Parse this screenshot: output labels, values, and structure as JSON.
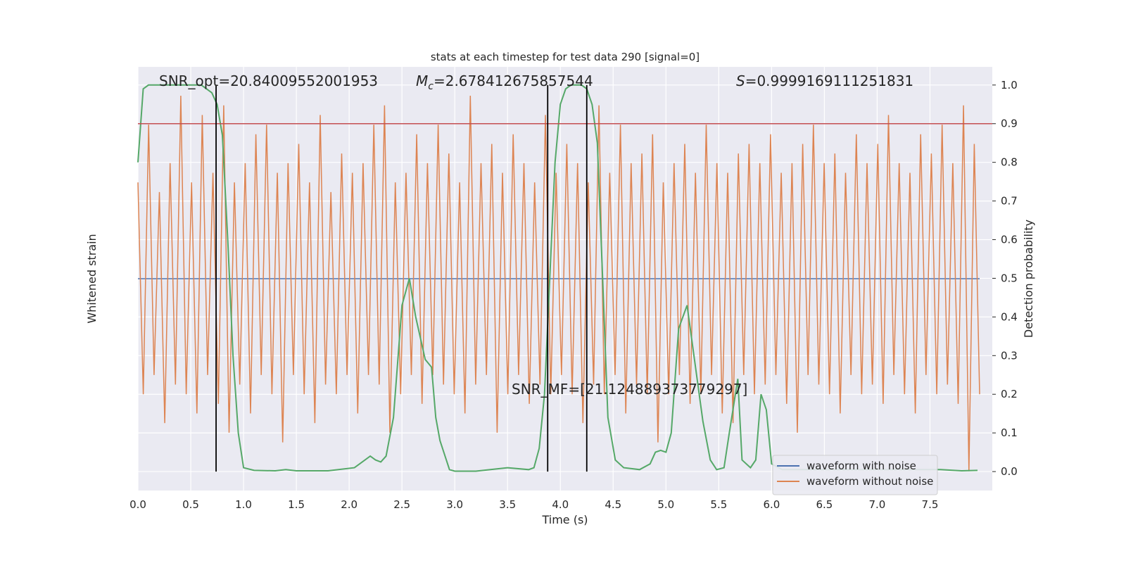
{
  "chart_data": {
    "type": "line",
    "title": "stats at each timestep for test data 290 [signal=0]",
    "x_label": "Time (s)",
    "y_label": "Whitened strain",
    "y2_label": "Detection probability",
    "xlim": [
      0,
      8.09
    ],
    "xticks": [
      {
        "value": 0,
        "label": "0.0"
      },
      0.5,
      {
        "value": 1,
        "label": "1.0"
      },
      1.5,
      {
        "value": 2,
        "label": "2.0"
      },
      2.5,
      {
        "value": 3,
        "label": "3.0"
      },
      3.5,
      {
        "value": 4,
        "label": "4.0"
      },
      4.5,
      {
        "value": 5,
        "label": "5.0"
      },
      5.5,
      {
        "value": 6,
        "label": "6.0"
      },
      6.5,
      {
        "value": 7,
        "label": "7.0"
      },
      7.5
    ],
    "ylim": [
      -1.1,
      1.1
    ],
    "y2lim": [
      -0.049,
      1.047
    ],
    "y2ticks": [
      {
        "value": 0,
        "label": "0.0"
      },
      0.1,
      0.2,
      0.3,
      0.4,
      0.5,
      0.6,
      0.7,
      0.8,
      0.9,
      {
        "value": 1,
        "label": "1.0"
      }
    ],
    "grid": true,
    "legend": "lower right",
    "strain_x_range": [
      0,
      7.97
    ],
    "series": [
      {
        "name": "waveform with noise",
        "color": "#4c72b0",
        "values": [
          0,
          0,
          0,
          0,
          0,
          0,
          0,
          0,
          0,
          0,
          0,
          0,
          0,
          0,
          0,
          0,
          0,
          0,
          0,
          0,
          0,
          0,
          0,
          0,
          0,
          0,
          0,
          0,
          0,
          0,
          0,
          0,
          0,
          0,
          0,
          0,
          0,
          0,
          0,
          0,
          0,
          0,
          0,
          0,
          0,
          0,
          0,
          0,
          0,
          0,
          0,
          0,
          0,
          0,
          0,
          0,
          0,
          0,
          0,
          0,
          0,
          0,
          0,
          0,
          0,
          0,
          0,
          0,
          0,
          0,
          0,
          0,
          0,
          0,
          0,
          0,
          0,
          0,
          0,
          0,
          0,
          0,
          0,
          0,
          0,
          0,
          0,
          0,
          0,
          0,
          0,
          0,
          0,
          0,
          0,
          0,
          0,
          0,
          0,
          0,
          0,
          0,
          0,
          0,
          0,
          0,
          0,
          0,
          0,
          0,
          0,
          0,
          0,
          0,
          0,
          0,
          0,
          0,
          0,
          0,
          0,
          0,
          0,
          0,
          0,
          0,
          0,
          0,
          0,
          0,
          0,
          0,
          0,
          0,
          0,
          0,
          0,
          0,
          0,
          0,
          0,
          0,
          0,
          0,
          0,
          0,
          0,
          0,
          0,
          0,
          0,
          0,
          0,
          0,
          0,
          0,
          0,
          0,
          0,
          0
        ]
      },
      {
        "name": "waveform without noise",
        "color": "#dd8452",
        "values": [
          0.5,
          -0.6,
          0.8,
          -0.5,
          0.45,
          -0.75,
          0.6,
          -0.55,
          0.95,
          -0.6,
          0.5,
          -0.7,
          0.85,
          -0.5,
          0.55,
          -0.65,
          0.9,
          -0.8,
          0.5,
          -0.55,
          0.6,
          -0.7,
          0.75,
          -0.5,
          0.8,
          -0.6,
          0.55,
          -0.85,
          0.6,
          -0.5,
          0.7,
          -0.6,
          0.5,
          -0.75,
          0.85,
          -0.55,
          0.45,
          -0.6,
          0.65,
          -0.5,
          0.55,
          -0.7,
          0.6,
          -0.5,
          0.8,
          -0.55,
          0.9,
          -0.8,
          0.5,
          -0.6,
          0.55,
          -0.5,
          0.75,
          -0.65,
          0.6,
          -0.5,
          0.8,
          -0.55,
          0.65,
          -0.6,
          0.5,
          -0.7,
          0.95,
          -0.55,
          0.6,
          -0.5,
          0.7,
          -0.8,
          0.55,
          -0.6,
          0.75,
          -0.5,
          0.6,
          -0.65,
          0.5,
          -0.55,
          0.85,
          -0.6,
          0.55,
          -0.5,
          0.7,
          -0.6,
          0.6,
          -0.75,
          0.5,
          -0.55,
          0.9,
          -0.6,
          0.55,
          -0.5,
          0.8,
          -0.7,
          0.6,
          -0.55,
          0.65,
          -0.6,
          0.75,
          -0.85,
          0.5,
          -0.6,
          0.6,
          -0.5,
          0.7,
          -0.65,
          0.55,
          -0.6,
          0.8,
          -0.5,
          0.6,
          -0.7,
          0.55,
          -0.75,
          0.65,
          -0.5,
          0.7,
          -0.6,
          0.6,
          -0.55,
          0.75,
          -0.5,
          0.55,
          -0.65,
          0.6,
          -0.8,
          0.7,
          -0.5,
          0.8,
          -0.55,
          0.6,
          -0.6,
          0.65,
          -0.7,
          0.55,
          -0.5,
          0.75,
          -0.6,
          0.6,
          -0.55,
          0.7,
          -0.65,
          0.85,
          -0.5,
          0.6,
          -0.6,
          0.55,
          -0.7,
          0.75,
          -0.5,
          0.65,
          -0.6,
          0.8,
          -0.55,
          0.6,
          -0.65,
          0.9,
          -1.0,
          0.7,
          -0.6
        ]
      },
      {
        "name": "detection probability",
        "color": "#55a868",
        "axis": "y2",
        "x": [
          0,
          0.05,
          0.1,
          0.6,
          0.7,
          0.75,
          0.8,
          0.85,
          0.9,
          0.95,
          1.0,
          1.1,
          1.3,
          1.4,
          1.5,
          1.8,
          2.05,
          2.2,
          2.25,
          2.3,
          2.35,
          2.42,
          2.5,
          2.57,
          2.63,
          2.72,
          2.78,
          2.82,
          2.86,
          2.95,
          3.0,
          3.2,
          3.5,
          3.7,
          3.75,
          3.8,
          3.85,
          3.9,
          3.95,
          4.0,
          4.05,
          4.1,
          4.2,
          4.25,
          4.3,
          4.35,
          4.4,
          4.45,
          4.52,
          4.6,
          4.75,
          4.85,
          4.9,
          4.95,
          5.0,
          5.05,
          5.12,
          5.2,
          5.25,
          5.35,
          5.42,
          5.48,
          5.55,
          5.6,
          5.68,
          5.72,
          5.8,
          5.85,
          5.9,
          5.95,
          6.0,
          6.1,
          7.6,
          7.8,
          7.95
        ],
        "values": [
          0.8,
          0.99,
          1,
          1,
          0.98,
          0.95,
          0.87,
          0.6,
          0.3,
          0.1,
          0.01,
          0.003,
          0.002,
          0.005,
          0.002,
          0.002,
          0.01,
          0.04,
          0.03,
          0.025,
          0.04,
          0.14,
          0.43,
          0.5,
          0.4,
          0.29,
          0.27,
          0.14,
          0.08,
          0.005,
          0.001,
          0.001,
          0.01,
          0.005,
          0.01,
          0.06,
          0.2,
          0.5,
          0.8,
          0.95,
          0.99,
          1,
          1,
          0.99,
          0.95,
          0.85,
          0.5,
          0.14,
          0.03,
          0.01,
          0.005,
          0.02,
          0.05,
          0.055,
          0.05,
          0.1,
          0.37,
          0.43,
          0.33,
          0.13,
          0.03,
          0.005,
          0.01,
          0.1,
          0.24,
          0.03,
          0.01,
          0.03,
          0.2,
          0.16,
          0.02,
          0.005,
          0.005,
          0.002,
          0.003
        ]
      }
    ],
    "threshold": {
      "value": 0.9,
      "color": "#c44e52"
    },
    "vlines": [
      0.74,
      3.88,
      4.25
    ],
    "annotations": {
      "snr_opt": "SNR_opt=20.84009552001953",
      "mc_symbol": "M",
      "mc_subscript": "c",
      "mc_text": "=2.678412675857544",
      "s_symbol": "S",
      "s_text": "=0.9999169111251831",
      "snr_mf": "SNR_MF=[21.124889373779297]"
    }
  }
}
